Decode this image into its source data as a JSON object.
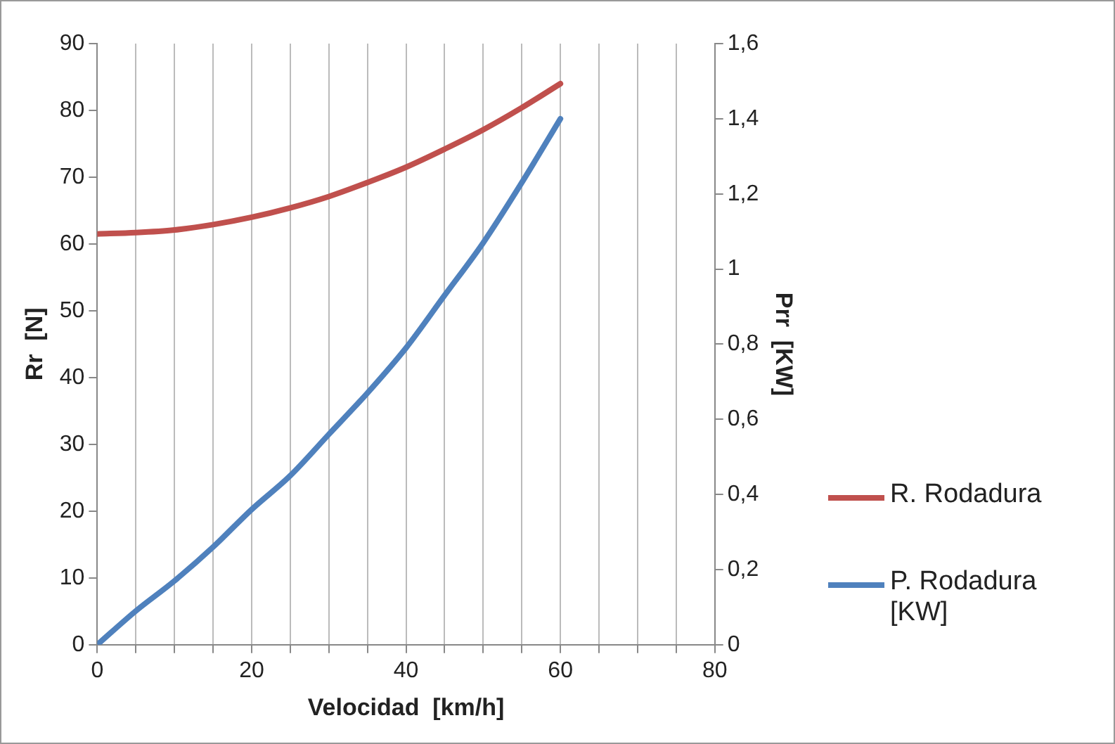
{
  "chart_data": {
    "type": "line",
    "xlabel": "Velocidad  [km/h]",
    "ylabel": "Rr  [N]",
    "y2label": "Prr  [KW]",
    "x": [
      0,
      5,
      10,
      15,
      20,
      25,
      30,
      35,
      40,
      45,
      50,
      55,
      60
    ],
    "xlim": [
      0,
      80
    ],
    "xticks": [
      0,
      {
        "value": 5,
        "label": null
      },
      {
        "value": 10,
        "label": null
      },
      {
        "value": 15,
        "label": null
      },
      20,
      {
        "value": 25,
        "label": null
      },
      {
        "value": 30,
        "label": null
      },
      {
        "value": 35,
        "label": null
      },
      40,
      {
        "value": 45,
        "label": null
      },
      {
        "value": 50,
        "label": null
      },
      {
        "value": 55,
        "label": null
      },
      60,
      {
        "value": 65,
        "label": null
      },
      {
        "value": 70,
        "label": null
      },
      {
        "value": 75,
        "label": null
      },
      80
    ],
    "ylim": [
      0,
      90
    ],
    "yticks": [
      0,
      10,
      20,
      30,
      40,
      50,
      60,
      70,
      80,
      90
    ],
    "y2lim": [
      0,
      1.6
    ],
    "y2ticks": [
      0,
      {
        "value": 0.2,
        "label": "0,2"
      },
      {
        "value": 0.4,
        "label": "0,4"
      },
      {
        "value": 0.6,
        "label": "0,6"
      },
      {
        "value": 0.8,
        "label": "0,8"
      },
      1,
      {
        "value": 1.2,
        "label": "1,2"
      },
      {
        "value": 1.4,
        "label": "1,4"
      },
      {
        "value": 1.6,
        "label": "1,6"
      }
    ],
    "series": [
      {
        "name": "R. Rodadura",
        "color": "#c0504d",
        "values": [
          61.5,
          61.7,
          62.1,
          62.9,
          64,
          65.4,
          67.1,
          69.2,
          71.5,
          74.2,
          77.1,
          80.4,
          84
        ]
      },
      {
        "name": "P. Rodadura [KW]",
        "color": "#4f81bd",
        "axis": "y2",
        "values": [
          0,
          0.09,
          0.17,
          0.26,
          0.36,
          0.45,
          0.56,
          0.67,
          0.79,
          0.93,
          1.07,
          1.23,
          1.4
        ]
      }
    ],
    "grid": "x",
    "legend": "right",
    "marker": "none",
    "line_style": "solid"
  }
}
